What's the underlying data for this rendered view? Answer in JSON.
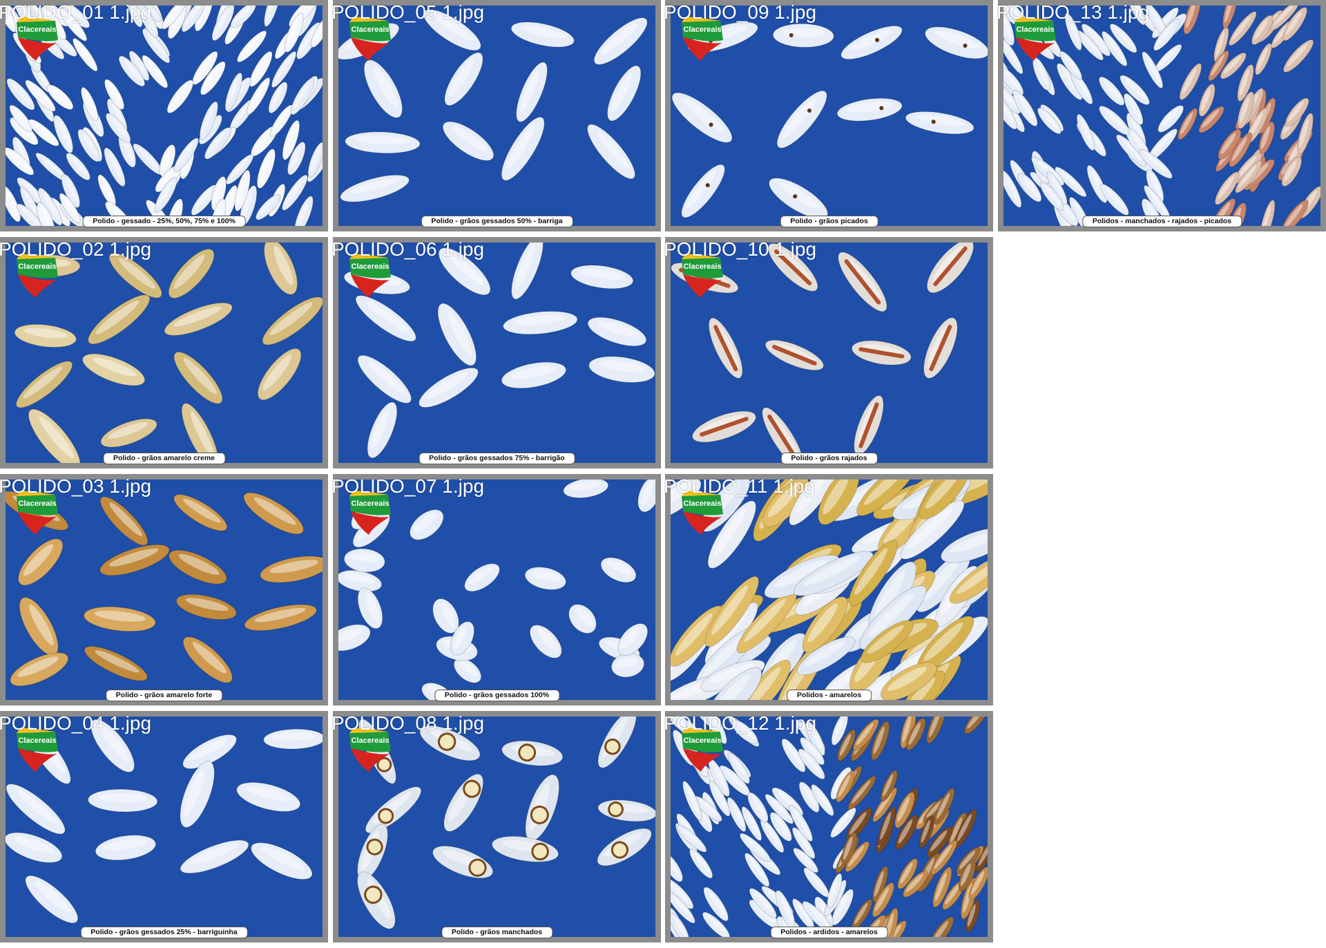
{
  "tiles": [
    {
      "file": "POLIDO_01 1.jpg",
      "caption": "Polido - gessado - 25%, 50%, 75% e 100%",
      "palette": "mixed-white",
      "logo": "Clacereais"
    },
    {
      "file": "POLIDO_05 1.jpg",
      "caption": "Polido - grãos gessados 50% - barriga",
      "palette": "white",
      "logo": "Clacereais"
    },
    {
      "file": "POLIDO_09 1.jpg",
      "caption": "Polido - grãos picados",
      "palette": "pecked",
      "logo": "Clacereais"
    },
    {
      "file": "POLIDO_13 1.jpg",
      "caption": "Polidos - manchados - rajados - picados",
      "palette": "mixed-red",
      "logo": "Clacereais"
    },
    {
      "file": "POLIDO_02 1.jpg",
      "caption": "Polido - grãos amarelo creme",
      "palette": "cream",
      "logo": "Clacereais"
    },
    {
      "file": "POLIDO_06 1.jpg",
      "caption": "Polido - grãos gessados 75% - barrigão",
      "palette": "white",
      "logo": "Clacereais"
    },
    {
      "file": "POLIDO_10 1.jpg",
      "caption": "Polido - grãos rajados",
      "palette": "streaked",
      "logo": "Clacereais"
    },
    {
      "file": "POLIDO_03 1.jpg",
      "caption": "Polido - grãos amarelo forte",
      "palette": "amber",
      "logo": "Clacereais"
    },
    {
      "file": "POLIDO_07 1.jpg",
      "caption": "Polido - grãos gessados 100%",
      "palette": "broken",
      "logo": "Clacereais"
    },
    {
      "file": "POLIDO_11 1.jpg",
      "caption": "Polidos - amarelos",
      "palette": "dense-yellow",
      "logo": "Clacereais"
    },
    {
      "file": "POLIDO_04 1.jpg",
      "caption": "Polido - grãos gessados 25% - barriguinha",
      "palette": "white",
      "logo": "Clacereais"
    },
    {
      "file": "POLIDO_08 1.jpg",
      "caption": "Polido - grãos manchados",
      "palette": "spotted",
      "logo": "Clacereais"
    },
    {
      "file": "POLIDO_12 1.jpg",
      "caption": "Polidos - ardidos - amarelos",
      "palette": "mixed-brown",
      "logo": "Clacereais"
    }
  ],
  "colors": {
    "background": "#1f4fa8",
    "frame": "#8c8c8c",
    "grain_white": "#e6edf8",
    "grain_cream": "#d9c48c",
    "grain_amber": "#c89548",
    "grain_red": "#b0522e",
    "grain_brown": "#8a5a2b"
  }
}
